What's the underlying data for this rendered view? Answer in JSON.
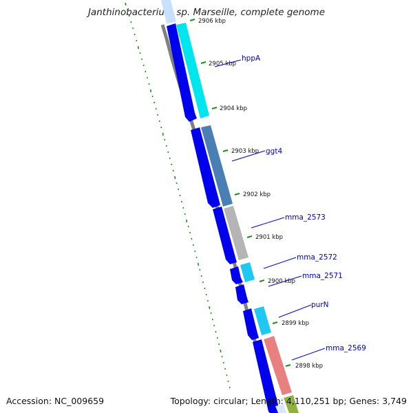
{
  "title": "Janthinobacterium sp. Marseille, complete genome",
  "footer": {
    "accession": "Accession: NC_009659",
    "topology": "Topology: circular; Length: 4,110,251 bp; Genes: 3,749"
  },
  "colors": {
    "backbone": "#808080",
    "gene_arrow": "#0000ee",
    "tick": "#228b22",
    "label": "#0000bb",
    "cds_cyan": "#00e5ee",
    "cds_steelblue": "#4a7fb5",
    "cds_gray": "#b5b5b5",
    "cds_lightcyan": "#1ec8f0",
    "cds_salmon": "#e88080",
    "cds_olive": "#90b040"
  },
  "ticks": [
    "2906 kbp",
    "2905 kbp",
    "2904 kbp",
    "2903 kbp",
    "2902 kbp",
    "2901 kbp",
    "2900 kbp",
    "2899 kbp",
    "2898 kbp"
  ],
  "genes": [
    "hppA",
    "ggt4",
    "mma_2573",
    "mma_2572",
    "mma_2571",
    "purN",
    "mma_2569"
  ]
}
